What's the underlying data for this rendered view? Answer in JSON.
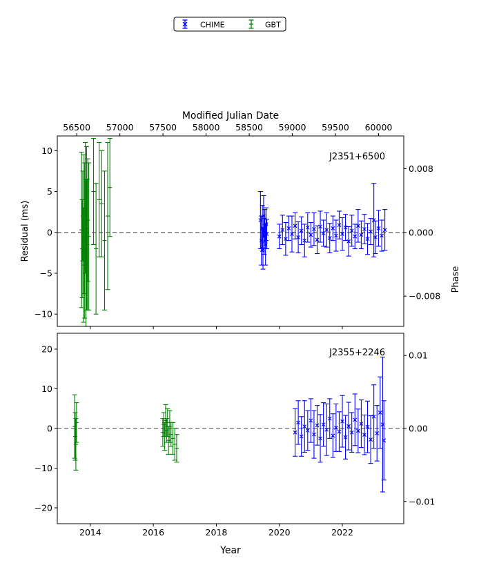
{
  "legend": {
    "entries": [
      {
        "label": "CHIME",
        "color": "#0000ff"
      },
      {
        "label": "GBT",
        "color": "#008000"
      }
    ]
  },
  "axes": {
    "top_xlabel": "Modified Julian Date",
    "bottom_xlabel": "Year",
    "left_ylabel": "Residual (ms)",
    "right_ylabel": "Phase"
  },
  "chart_data": [
    {
      "type": "scatter",
      "title": "J2351+6500",
      "x_units": "year",
      "xlim": [
        2012.95,
        2023.95
      ],
      "ylim": [
        -11.5,
        11.8
      ],
      "top_axis": {
        "label": "Modified Julian Date",
        "ticks": [
          56500,
          57000,
          57500,
          58000,
          58500,
          59000,
          59500,
          60000
        ]
      },
      "x_ticks": [
        2014,
        2016,
        2018,
        2020,
        2022
      ],
      "y_ticks": [
        -10,
        -5,
        0,
        5,
        10
      ],
      "right_axis": {
        "label": "Phase",
        "ticks": [
          "0.008",
          "0.000",
          "−0.008"
        ],
        "tick_values_ms": [
          7.8,
          0,
          -7.8
        ]
      },
      "reference_line": 0,
      "series": [
        {
          "name": "GBT",
          "color": "#008000",
          "points": [
            [
              2013.72,
              0.3,
              9.5
            ],
            [
              2013.74,
              -2.0,
              6.0
            ],
            [
              2013.76,
              2.0,
              5.5
            ],
            [
              2013.78,
              -4.0,
              7.0
            ],
            [
              2013.8,
              1.0,
              8.5
            ],
            [
              2013.82,
              -1.0,
              9.5
            ],
            [
              2013.84,
              3.0,
              8.0
            ],
            [
              2013.86,
              -2.5,
              9.0
            ],
            [
              2013.88,
              0.5,
              10.0
            ],
            [
              2013.9,
              -1.5,
              8.0
            ],
            [
              2013.92,
              1.5,
              7.5
            ],
            [
              2013.95,
              -0.5,
              9.0
            ],
            [
              2014.1,
              5.0,
              6.5
            ],
            [
              2014.18,
              -2.0,
              8.0
            ],
            [
              2014.28,
              4.0,
              7.0
            ],
            [
              2014.36,
              3.5,
              6.5
            ],
            [
              2014.45,
              -1.0,
              8.5
            ],
            [
              2014.55,
              2.0,
              9.0
            ],
            [
              2014.62,
              5.5,
              6.0
            ]
          ]
        },
        {
          "name": "CHIME",
          "color": "#0000ff",
          "points": [
            [
              2019.4,
              1.5,
              3.5
            ],
            [
              2019.43,
              -1.0,
              3.0
            ],
            [
              2019.46,
              0.5,
              2.8
            ],
            [
              2019.48,
              -2.0,
              2.5
            ],
            [
              2019.5,
              2.0,
              2.5
            ],
            [
              2019.52,
              -0.5,
              2.2
            ],
            [
              2019.54,
              0.8,
              2.0
            ],
            [
              2019.56,
              -1.5,
              2.5
            ],
            [
              2019.58,
              1.0,
              2.0
            ],
            [
              2019.6,
              -0.2,
              1.8
            ],
            [
              2020.0,
              -0.5,
              1.5
            ],
            [
              2020.1,
              0.3,
              1.8
            ],
            [
              2020.2,
              -0.8,
              2.0
            ],
            [
              2020.3,
              0.5,
              1.5
            ],
            [
              2020.4,
              -0.2,
              2.2
            ],
            [
              2020.5,
              0.8,
              1.6
            ],
            [
              2020.6,
              -0.6,
              1.9
            ],
            [
              2020.7,
              0.2,
              1.7
            ],
            [
              2020.8,
              -1.0,
              2.0
            ],
            [
              2020.9,
              0.6,
              1.8
            ],
            [
              2021.0,
              -0.3,
              1.5
            ],
            [
              2021.1,
              0.4,
              2.0
            ],
            [
              2021.2,
              -0.9,
              1.7
            ],
            [
              2021.3,
              0.7,
              1.9
            ],
            [
              2021.4,
              -0.1,
              1.6
            ],
            [
              2021.5,
              0.3,
              2.1
            ],
            [
              2021.6,
              -0.7,
              1.8
            ],
            [
              2021.7,
              0.5,
              1.5
            ],
            [
              2021.8,
              -0.4,
              1.9
            ],
            [
              2021.9,
              0.9,
              1.7
            ],
            [
              2022.0,
              -0.2,
              2.0
            ],
            [
              2022.1,
              0.6,
              1.6
            ],
            [
              2022.2,
              -1.1,
              1.8
            ],
            [
              2022.3,
              0.2,
              1.9
            ],
            [
              2022.4,
              -0.5,
              1.5
            ],
            [
              2022.5,
              0.8,
              2.0
            ],
            [
              2022.6,
              -0.3,
              1.7
            ],
            [
              2022.7,
              0.4,
              1.8
            ],
            [
              2022.8,
              -0.8,
              1.9
            ],
            [
              2022.9,
              0.1,
              1.6
            ],
            [
              2023.0,
              1.5,
              4.5
            ],
            [
              2023.05,
              -0.6,
              2.0
            ],
            [
              2023.15,
              0.5,
              2.2
            ],
            [
              2023.25,
              -0.4,
              1.9
            ],
            [
              2023.35,
              0.3,
              2.5
            ]
          ]
        }
      ]
    },
    {
      "type": "scatter",
      "title": "J2355+2246",
      "x_units": "year",
      "xlim": [
        2012.95,
        2023.95
      ],
      "ylim": [
        -24,
        24
      ],
      "x_ticks": [
        2014,
        2016,
        2018,
        2020,
        2022
      ],
      "y_ticks": [
        -20,
        -10,
        0,
        10,
        20
      ],
      "right_axis": {
        "label": "Phase",
        "ticks": [
          "0.01",
          "0.00",
          "−0.01"
        ],
        "tick_values_ms": [
          18.4,
          0,
          -18.4
        ]
      },
      "reference_line": 0,
      "series": [
        {
          "name": "GBT",
          "color": "#008000",
          "points": [
            [
              2013.5,
              0.5,
              8.0
            ],
            [
              2013.52,
              -2.0,
              6.0
            ],
            [
              2013.54,
              -4.0,
              6.5
            ],
            [
              2013.56,
              1.5,
              5.0
            ],
            [
              2016.3,
              -1.0,
              3.5
            ],
            [
              2016.33,
              1.0,
              3.0
            ],
            [
              2016.36,
              -2.0,
              3.5
            ],
            [
              2016.39,
              2.0,
              4.0
            ],
            [
              2016.42,
              -0.5,
              3.0
            ],
            [
              2016.45,
              1.5,
              3.5
            ],
            [
              2016.48,
              -3.0,
              3.5
            ],
            [
              2016.52,
              0.5,
              4.0
            ],
            [
              2016.56,
              -1.5,
              3.0
            ],
            [
              2016.62,
              -2.5,
              4.0
            ],
            [
              2016.68,
              -4.0,
              4.0
            ],
            [
              2016.74,
              -5.0,
              3.5
            ]
          ]
        },
        {
          "name": "CHIME",
          "color": "#0000ff",
          "points": [
            [
              2020.5,
              -1.0,
              6.0
            ],
            [
              2020.6,
              1.5,
              5.5
            ],
            [
              2020.7,
              -2.0,
              5.0
            ],
            [
              2020.8,
              0.5,
              6.5
            ],
            [
              2020.9,
              -0.5,
              5.0
            ],
            [
              2021.0,
              2.0,
              5.5
            ],
            [
              2021.1,
              -1.5,
              6.0
            ],
            [
              2021.2,
              0.8,
              5.0
            ],
            [
              2021.3,
              -2.5,
              6.0
            ],
            [
              2021.4,
              1.0,
              5.5
            ],
            [
              2021.5,
              -0.3,
              6.5
            ],
            [
              2021.6,
              2.5,
              5.0
            ],
            [
              2021.7,
              -1.8,
              5.5
            ],
            [
              2021.8,
              0.2,
              6.0
            ],
            [
              2021.9,
              -0.8,
              5.0
            ],
            [
              2022.0,
              1.8,
              6.5
            ],
            [
              2022.1,
              -2.2,
              5.5
            ],
            [
              2022.2,
              0.6,
              6.0
            ],
            [
              2022.3,
              -1.0,
              5.0
            ],
            [
              2022.4,
              2.2,
              6.5
            ],
            [
              2022.5,
              -0.6,
              5.5
            ],
            [
              2022.6,
              1.2,
              6.0
            ],
            [
              2022.7,
              -1.6,
              5.0
            ],
            [
              2022.8,
              0.4,
              6.5
            ],
            [
              2022.9,
              -2.8,
              6.0
            ],
            [
              2023.0,
              3.0,
              8.0
            ],
            [
              2023.1,
              -1.2,
              7.0
            ],
            [
              2023.2,
              4.0,
              9.0
            ],
            [
              2023.28,
              1.0,
              17.0
            ],
            [
              2023.32,
              -3.0,
              10.0
            ]
          ]
        }
      ]
    }
  ]
}
